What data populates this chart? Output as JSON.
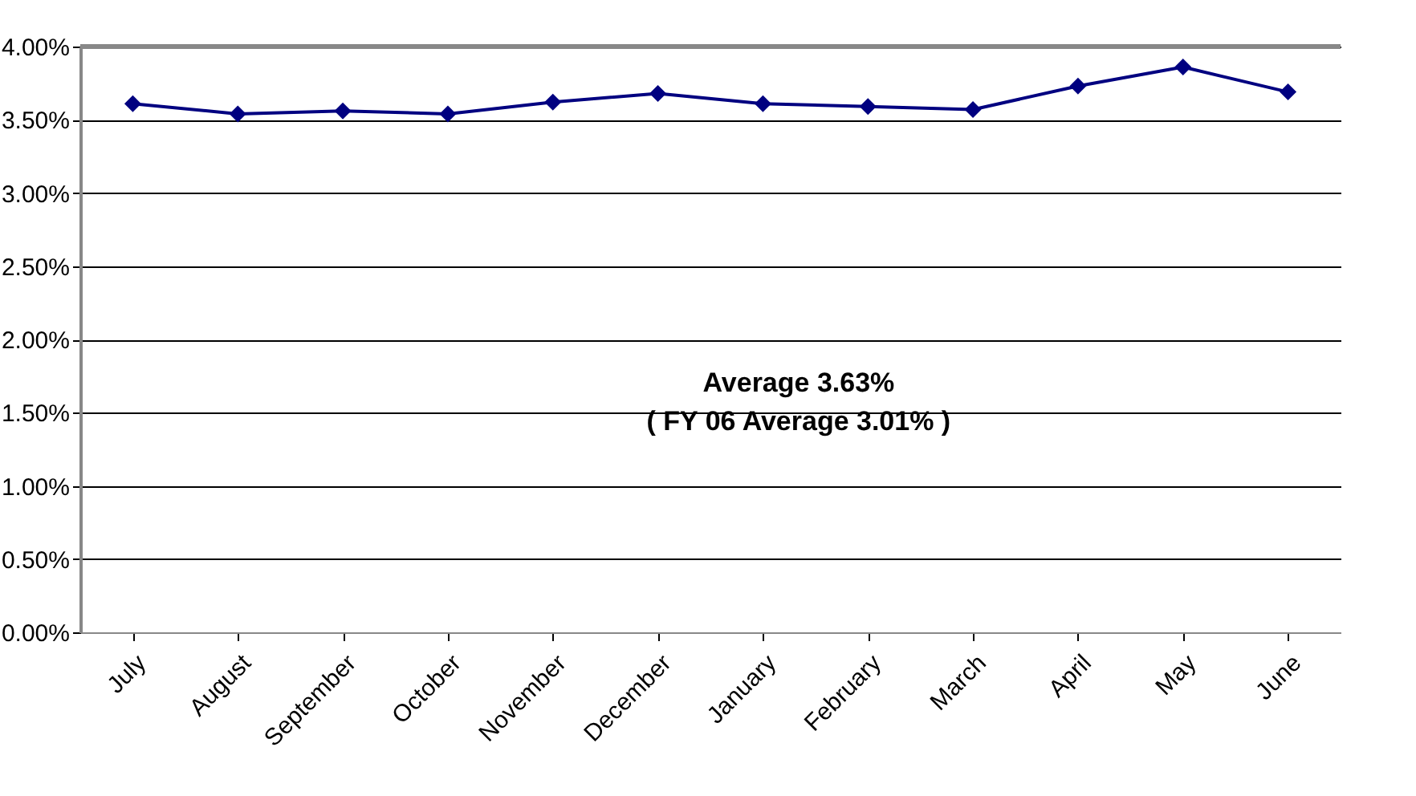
{
  "chart_data": {
    "type": "line",
    "categories": [
      "July",
      "August",
      "September",
      "October",
      "November",
      "December",
      "January",
      "February",
      "March",
      "April",
      "May",
      "June"
    ],
    "series": [
      {
        "color": "#000080",
        "values": [
          3.61,
          3.54,
          3.56,
          3.54,
          3.62,
          3.68,
          3.61,
          3.59,
          3.57,
          3.73,
          3.86,
          3.69
        ]
      }
    ],
    "ylim": [
      0,
      4
    ],
    "yticks": [
      {
        "value": 0,
        "label": "0.00%"
      },
      {
        "value": 0.5,
        "label": "0.50%"
      },
      {
        "value": 1,
        "label": "1.00%"
      },
      {
        "value": 1.5,
        "label": "1.50%"
      },
      {
        "value": 2,
        "label": "2.00%"
      },
      {
        "value": 2.5,
        "label": "2.50%"
      },
      {
        "value": 3,
        "label": "3.00%"
      },
      {
        "value": 3.5,
        "label": "3.50%"
      },
      {
        "value": 4,
        "label": "4.00%"
      }
    ],
    "grid": "y",
    "marker": "diamond",
    "line_style": "solid",
    "legend": false,
    "annotations": [
      "Average 3.63%",
      "( FY 06 Average 3.01% )"
    ]
  }
}
